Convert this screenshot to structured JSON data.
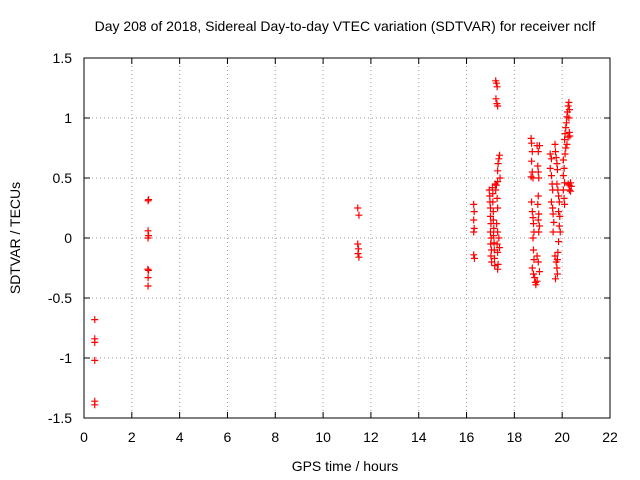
{
  "chart_data": {
    "type": "scatter",
    "title": "Day 208 of 2018, Sidereal Day-to-day VTEC variation (SDTVAR) for receiver nclf",
    "xlabel": "GPS time / hours",
    "ylabel": "SDTVAR / TECUs",
    "xlim": [
      0,
      22
    ],
    "ylim": [
      -1.5,
      1.5
    ],
    "xticks": [
      0,
      2,
      4,
      6,
      8,
      10,
      12,
      14,
      16,
      18,
      20,
      22
    ],
    "yticks": [
      -1.5,
      -1,
      -0.5,
      0,
      0.5,
      1,
      1.5
    ],
    "xtick_labels": [
      "0",
      "2",
      "4",
      "6",
      "8",
      "10",
      "12",
      "14",
      "16",
      "18",
      "20",
      "22"
    ],
    "ytick_labels": [
      "-1.5",
      "-1",
      "-0.5",
      "0",
      "0.5",
      "1",
      "1.5"
    ],
    "grid": true,
    "marker": "+",
    "color": "#ff0000",
    "series": [
      {
        "name": "SDTVAR",
        "points": [
          [
            0.45,
            -0.68
          ],
          [
            0.45,
            -0.84
          ],
          [
            0.45,
            -0.87
          ],
          [
            0.45,
            -1.02
          ],
          [
            0.45,
            -1.36
          ],
          [
            0.45,
            -1.39
          ],
          [
            2.68,
            0.31
          ],
          [
            2.7,
            0.32
          ],
          [
            2.68,
            0.06
          ],
          [
            2.7,
            0.02
          ],
          [
            2.68,
            0.0
          ],
          [
            2.67,
            -0.26
          ],
          [
            2.7,
            -0.27
          ],
          [
            2.68,
            -0.33
          ],
          [
            2.68,
            -0.4
          ],
          [
            11.45,
            0.25
          ],
          [
            11.5,
            0.19
          ],
          [
            11.45,
            -0.05
          ],
          [
            11.48,
            -0.09
          ],
          [
            11.46,
            -0.13
          ],
          [
            11.5,
            -0.16
          ],
          [
            16.3,
            0.28
          ],
          [
            16.32,
            0.22
          ],
          [
            16.3,
            0.15
          ],
          [
            16.32,
            0.08
          ],
          [
            16.3,
            0.05
          ],
          [
            16.3,
            -0.14
          ],
          [
            16.33,
            -0.17
          ],
          [
            16.95,
            0.4
          ],
          [
            16.97,
            0.35
          ],
          [
            16.98,
            0.3
          ],
          [
            17.0,
            0.25
          ],
          [
            17.0,
            0.18
          ],
          [
            17.02,
            0.12
          ],
          [
            17.0,
            0.05
          ],
          [
            17.03,
            0.0
          ],
          [
            17.01,
            -0.05
          ],
          [
            17.04,
            -0.1
          ],
          [
            17.02,
            -0.15
          ],
          [
            17.05,
            -0.2
          ],
          [
            17.08,
            0.42
          ],
          [
            17.1,
            0.37
          ],
          [
            17.1,
            0.3
          ],
          [
            17.12,
            0.22
          ],
          [
            17.12,
            0.15
          ],
          [
            17.14,
            0.08
          ],
          [
            17.13,
            0.02
          ],
          [
            17.15,
            -0.04
          ],
          [
            17.16,
            -0.1
          ],
          [
            17.17,
            -0.17
          ],
          [
            17.18,
            -0.23
          ],
          [
            17.2,
            0.45
          ],
          [
            17.22,
            0.4
          ],
          [
            17.25,
            0.44
          ],
          [
            17.3,
            0.47
          ],
          [
            17.28,
            0.33
          ],
          [
            17.3,
            0.25
          ],
          [
            17.26,
            0.12
          ],
          [
            17.3,
            0.05
          ],
          [
            17.28,
            -0.05
          ],
          [
            17.3,
            -0.12
          ],
          [
            17.32,
            -0.22
          ],
          [
            17.3,
            -0.26
          ],
          [
            17.22,
            1.31
          ],
          [
            17.25,
            1.29
          ],
          [
            17.28,
            1.26
          ],
          [
            17.23,
            1.16
          ],
          [
            17.27,
            1.12
          ],
          [
            17.3,
            1.1
          ],
          [
            17.3,
            0.56
          ],
          [
            17.32,
            0.62
          ],
          [
            17.35,
            0.66
          ],
          [
            17.38,
            0.69
          ],
          [
            17.4,
            0.5
          ],
          [
            17.35,
            0.0
          ],
          [
            17.38,
            -0.08
          ],
          [
            18.7,
            0.83
          ],
          [
            18.72,
            0.79
          ],
          [
            18.75,
            0.72
          ],
          [
            18.72,
            0.64
          ],
          [
            18.75,
            0.55
          ],
          [
            18.7,
            0.51
          ],
          [
            18.78,
            0.5
          ],
          [
            18.72,
            0.3
          ],
          [
            18.75,
            0.22
          ],
          [
            18.78,
            0.17
          ],
          [
            18.8,
            0.12
          ],
          [
            18.82,
            0.05
          ],
          [
            18.78,
            0.0
          ],
          [
            18.8,
            -0.1
          ],
          [
            18.82,
            -0.18
          ],
          [
            18.75,
            -0.25
          ],
          [
            18.8,
            -0.3
          ],
          [
            18.85,
            -0.33
          ],
          [
            18.88,
            -0.37
          ],
          [
            18.9,
            -0.39
          ],
          [
            18.95,
            -0.36
          ],
          [
            19.0,
            0.35
          ],
          [
            18.98,
            0.28
          ],
          [
            19.02,
            0.2
          ],
          [
            19.0,
            0.15
          ],
          [
            19.05,
            0.1
          ],
          [
            19.02,
            0.05
          ],
          [
            18.95,
            -0.15
          ],
          [
            19.0,
            -0.2
          ],
          [
            19.05,
            -0.28
          ],
          [
            18.95,
            0.77
          ],
          [
            19.0,
            0.72
          ],
          [
            19.05,
            0.77
          ],
          [
            18.98,
            0.6
          ],
          [
            19.0,
            0.55
          ],
          [
            19.02,
            0.5
          ],
          [
            19.5,
            0.7
          ],
          [
            19.55,
            0.66
          ],
          [
            19.5,
            0.58
          ],
          [
            19.55,
            0.52
          ],
          [
            19.58,
            0.45
          ],
          [
            19.6,
            0.4
          ],
          [
            19.55,
            0.3
          ],
          [
            19.6,
            0.25
          ],
          [
            19.62,
            0.2
          ],
          [
            19.65,
            0.13
          ],
          [
            19.62,
            0.05
          ],
          [
            19.7,
            0.78
          ],
          [
            19.72,
            0.72
          ],
          [
            19.75,
            0.67
          ],
          [
            19.78,
            0.62
          ],
          [
            19.8,
            0.57
          ],
          [
            19.78,
            0.45
          ],
          [
            19.82,
            0.4
          ],
          [
            19.85,
            0.35
          ],
          [
            19.88,
            0.3
          ],
          [
            19.85,
            0.22
          ],
          [
            19.9,
            0.18
          ],
          [
            19.88,
            0.1
          ],
          [
            19.92,
            0.05
          ],
          [
            19.7,
            -0.15
          ],
          [
            19.75,
            -0.2
          ],
          [
            19.78,
            -0.25
          ],
          [
            19.8,
            -0.3
          ],
          [
            19.72,
            -0.34
          ],
          [
            19.82,
            -0.12
          ],
          [
            19.85,
            -0.03
          ],
          [
            19.8,
            -0.18
          ],
          [
            20.05,
            0.65
          ],
          [
            20.08,
            0.58
          ],
          [
            20.05,
            0.52
          ],
          [
            20.1,
            0.46
          ],
          [
            20.05,
            0.4
          ],
          [
            20.08,
            0.33
          ],
          [
            20.1,
            0.28
          ],
          [
            20.1,
            0.82
          ],
          [
            20.12,
            0.87
          ],
          [
            20.15,
            0.92
          ],
          [
            20.18,
            0.96
          ],
          [
            20.2,
            1.01
          ],
          [
            20.22,
            1.05
          ],
          [
            20.25,
            1.1
          ],
          [
            20.28,
            1.13
          ],
          [
            20.3,
            1.07
          ],
          [
            20.28,
            1.0
          ],
          [
            20.12,
            0.7
          ],
          [
            20.15,
            0.75
          ],
          [
            20.2,
            0.78
          ],
          [
            20.25,
            0.84
          ],
          [
            20.3,
            0.88
          ],
          [
            20.32,
            0.85
          ],
          [
            20.25,
            0.45
          ],
          [
            20.3,
            0.44
          ],
          [
            20.35,
            0.46
          ],
          [
            20.38,
            0.43
          ],
          [
            20.3,
            0.4
          ],
          [
            20.35,
            0.39
          ]
        ]
      }
    ]
  }
}
